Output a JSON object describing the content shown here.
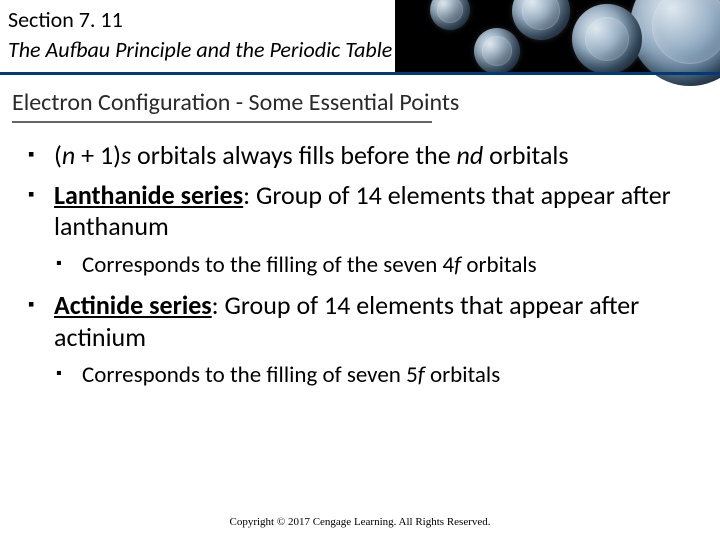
{
  "header": {
    "section_label": "Section 7. 11",
    "section_title": "The Aufbau Principle and the Periodic Table"
  },
  "subheading": "Electron Configuration - Some Essential Points",
  "bullets": {
    "b1_pre": "(",
    "b1_n": "n",
    "b1_mid1": " + 1)",
    "b1_s": "s",
    "b1_mid2": " orbitals always fills before the ",
    "b1_nd": "nd",
    "b1_post": " orbitals",
    "b2_term": "Lanthanide series",
    "b2_rest": ": Group of 14 elements that appear after lanthanum",
    "b2_sub_pre": "Corresponds to the filling of the seven 4",
    "b2_sub_f": "f",
    "b2_sub_post": " orbitals",
    "b3_term": "Actinide series",
    "b3_rest": ": Group of 14 elements that appear after actinium",
    "b3_sub_pre": "Corresponds to the filling of seven 5",
    "b3_sub_f": "f",
    "b3_sub_post": " orbitals"
  },
  "copyright": "Copyright © 2017 Cengage Learning. All Rights Reserved.",
  "colors": {
    "divider": "#003a7a",
    "text": "#000000",
    "background": "#ffffff"
  }
}
